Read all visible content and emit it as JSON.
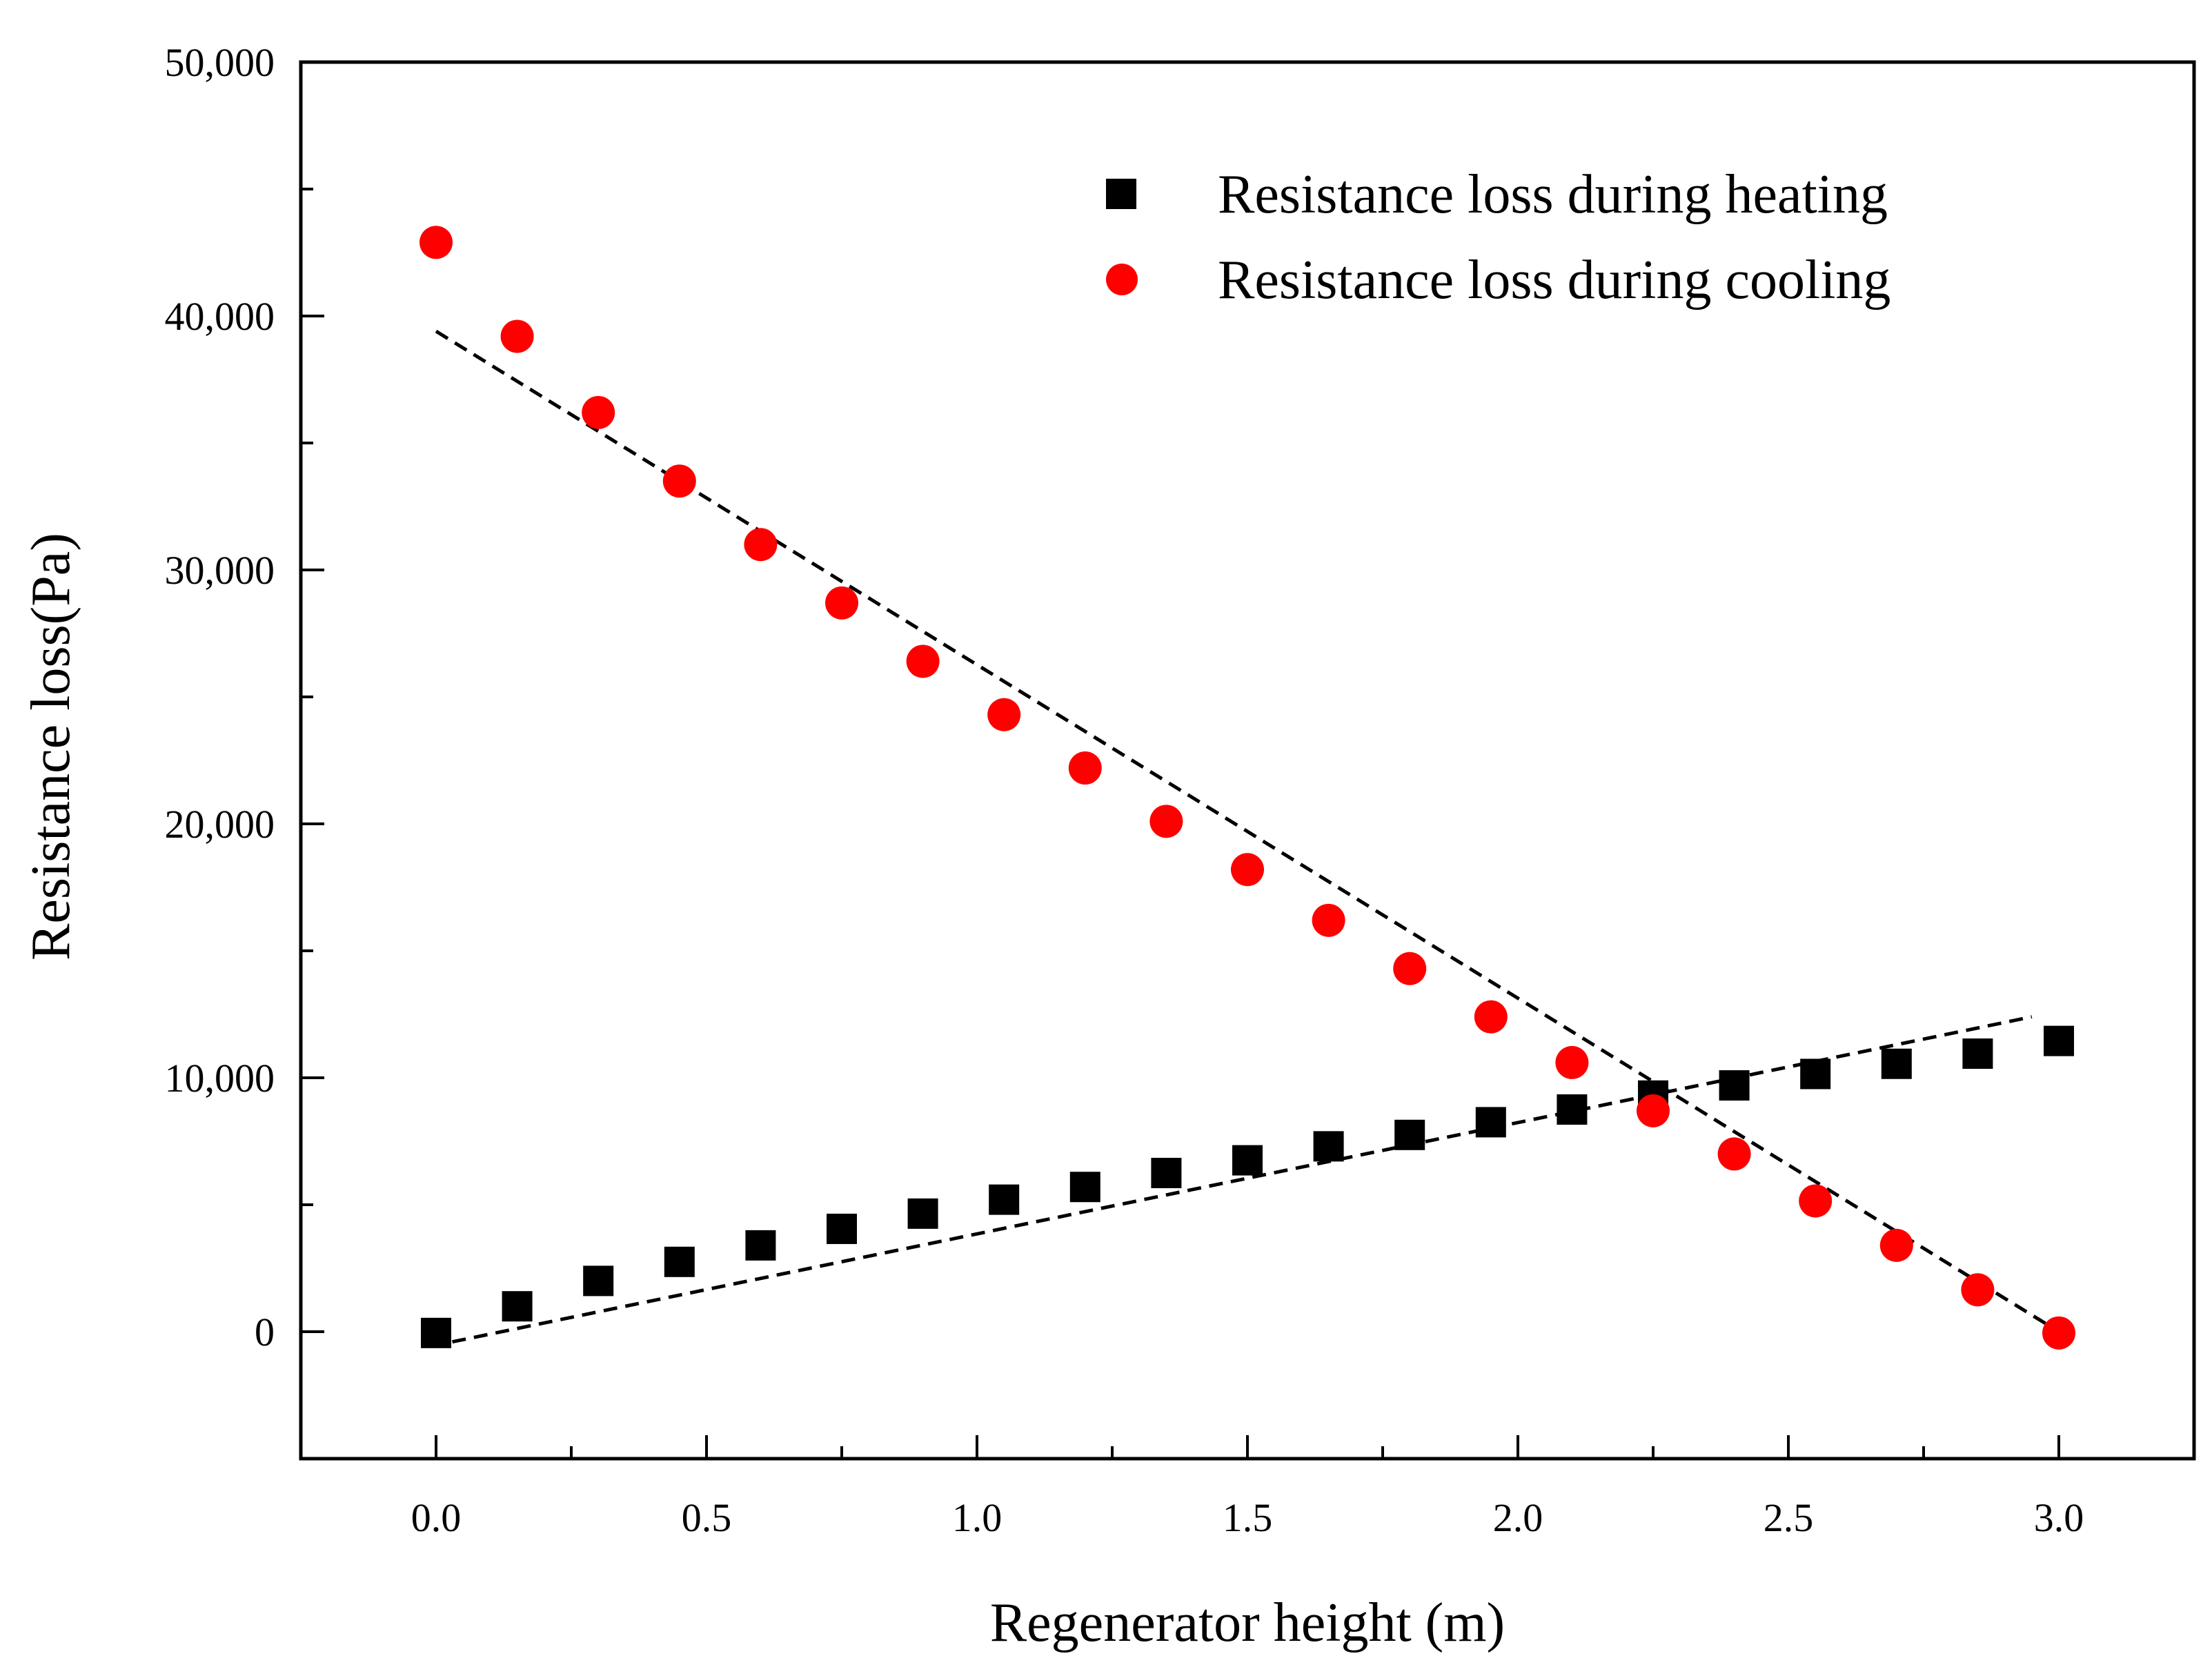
{
  "chart_data": {
    "type": "scatter",
    "xlabel": "Regenerator height (m)",
    "ylabel": "Resistance loss(Pa)",
    "xlim": [
      -0.25,
      3.25
    ],
    "ylim": [
      -5000,
      50000
    ],
    "x_ticks": [
      0.0,
      0.5,
      1.0,
      1.5,
      2.0,
      2.5,
      3.0
    ],
    "x_tick_labels": [
      "0.0",
      "0.5",
      "1.0",
      "1.5",
      "2.0",
      "2.5",
      "3.0"
    ],
    "x_minor_ticks": [
      -0.25,
      0.25,
      0.75,
      1.25,
      1.75,
      2.25,
      2.75,
      3.25
    ],
    "y_ticks": [
      0,
      10000,
      20000,
      30000,
      40000,
      50000
    ],
    "y_tick_labels": [
      "0",
      "10,000",
      "20,000",
      "30,000",
      "40,000",
      "50,000"
    ],
    "y_minor_ticks": [
      -5000,
      5000,
      15000,
      25000,
      35000,
      45000
    ],
    "grid": false,
    "legend_position": "top-right",
    "series": [
      {
        "name": "Resistance loss during heating",
        "marker": "square",
        "color": "#000000",
        "x": [
          0.0,
          0.15,
          0.3,
          0.45,
          0.6,
          0.75,
          0.9,
          1.05,
          1.2,
          1.35,
          1.5,
          1.65,
          1.8,
          1.95,
          2.1,
          2.25,
          2.4,
          2.55,
          2.7,
          2.85,
          3.0
        ],
        "y": [
          -50,
          1000,
          2000,
          2750,
          3400,
          4050,
          4650,
          5200,
          5700,
          6250,
          6750,
          7300,
          7750,
          8250,
          8750,
          9300,
          9700,
          10150,
          10550,
          10950,
          11450
        ]
      },
      {
        "name": "Resistance loss during cooling",
        "marker": "circle",
        "color": "#ff0000",
        "x": [
          0.0,
          0.15,
          0.3,
          0.45,
          0.6,
          0.75,
          0.9,
          1.05,
          1.2,
          1.35,
          1.5,
          1.65,
          1.8,
          1.95,
          2.1,
          2.25,
          2.4,
          2.55,
          2.7,
          2.85,
          3.0
        ],
        "y": [
          42900,
          39200,
          36200,
          33500,
          31000,
          28700,
          26400,
          24300,
          22200,
          20100,
          18200,
          16200,
          14300,
          12400,
          10600,
          8700,
          7000,
          5150,
          3400,
          1650,
          -50
        ]
      }
    ],
    "fit_lines": [
      {
        "name": "heating-fit",
        "style": "dashed",
        "color": "#000000",
        "x": [
          0.03,
          2.95
        ],
        "y": [
          -400,
          12400
        ]
      },
      {
        "name": "cooling-fit",
        "style": "dashed",
        "color": "#000000",
        "x": [
          0.0,
          3.0
        ],
        "y": [
          39400,
          0
        ]
      }
    ]
  }
}
